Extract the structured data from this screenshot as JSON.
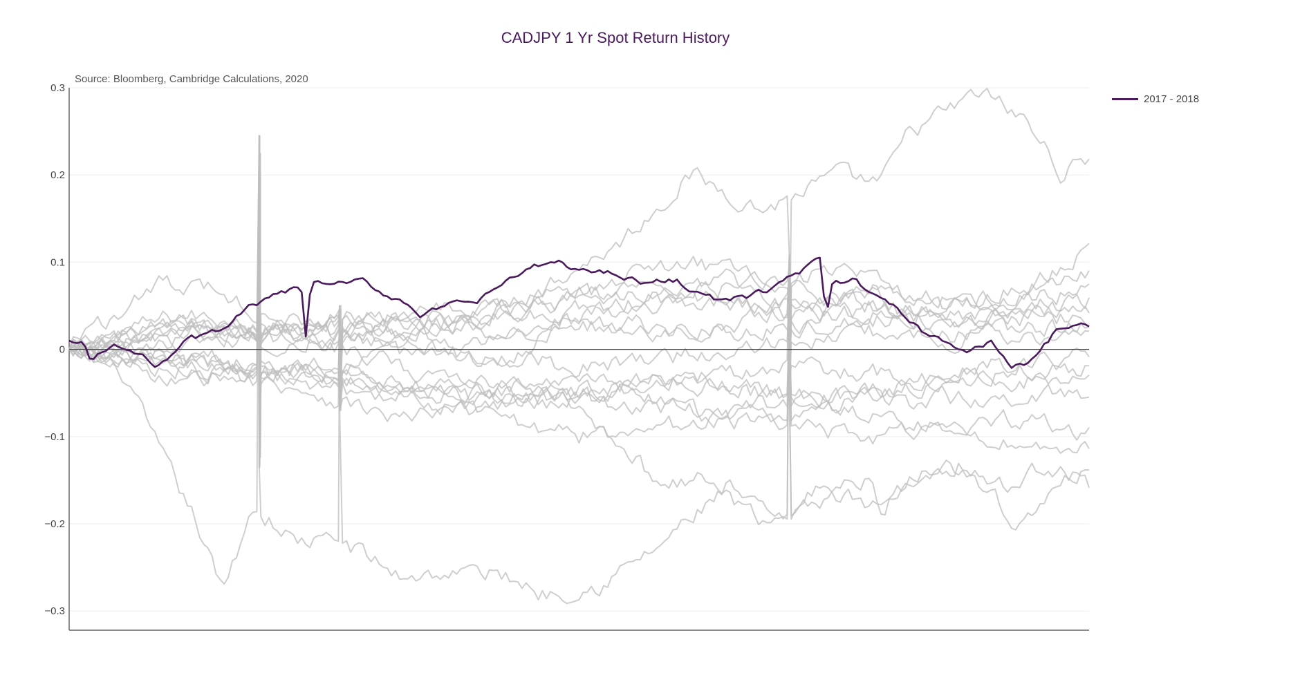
{
  "chart_data": {
    "type": "line",
    "title": "CADJPY 1 Yr Spot Return History",
    "subtitle": "Source: Bloomberg, Cambridge Calculations, 2020",
    "xlabel": "",
    "ylabel": "",
    "ylim": [
      -0.322,
      0.3
    ],
    "yticks": [
      0.3,
      0.2,
      0.1,
      0,
      -0.1,
      -0.2,
      -0.3
    ],
    "ytick_labels": [
      "0.3",
      "0.2",
      "0.1",
      "0",
      "−0.1",
      "−0.2",
      "−0.3"
    ],
    "x_points": 250,
    "grid": true,
    "legend_position": "top-right",
    "colors": {
      "highlight": "#4a1a5c",
      "history": "#bdbdbd",
      "zero_line": "#444444",
      "grid": "#eeeeee"
    },
    "highlight_series": {
      "name": "2017 - 2018",
      "anchors": [
        [
          0,
          0.01
        ],
        [
          4,
          0.008
        ],
        [
          6,
          -0.015
        ],
        [
          12,
          0.005
        ],
        [
          18,
          -0.005
        ],
        [
          24,
          -0.018
        ],
        [
          32,
          0.01
        ],
        [
          40,
          0.02
        ],
        [
          50,
          0.05
        ],
        [
          56,
          0.06
        ],
        [
          62,
          0.07
        ],
        [
          64,
          0.065
        ],
        [
          65,
          -0.008
        ],
        [
          66,
          0.076
        ],
        [
          74,
          0.075
        ],
        [
          80,
          0.078
        ],
        [
          88,
          0.06
        ],
        [
          92,
          0.055
        ],
        [
          96,
          0.04
        ],
        [
          104,
          0.05
        ],
        [
          112,
          0.055
        ],
        [
          120,
          0.08
        ],
        [
          128,
          0.095
        ],
        [
          134,
          0.1
        ],
        [
          140,
          0.09
        ],
        [
          150,
          0.088
        ],
        [
          158,
          0.075
        ],
        [
          166,
          0.08
        ],
        [
          172,
          0.065
        ],
        [
          178,
          0.055
        ],
        [
          186,
          0.06
        ],
        [
          192,
          0.07
        ],
        [
          198,
          0.085
        ],
        [
          204,
          0.1
        ],
        [
          206,
          0.1
        ],
        [
          207,
          0.012
        ],
        [
          208,
          0.075
        ],
        [
          214,
          0.08
        ],
        [
          222,
          0.06
        ],
        [
          228,
          0.04
        ],
        [
          234,
          0.02
        ],
        [
          240,
          0.008
        ],
        [
          246,
          -0.005
        ],
        [
          252,
          0.01
        ],
        [
          258,
          -0.02
        ],
        [
          264,
          -0.012
        ],
        [
          270,
          0.02
        ],
        [
          276,
          0.03
        ],
        [
          279,
          0.022
        ]
      ]
    },
    "history_series": [
      {
        "anchors": [
          [
            0,
            0
          ],
          [
            30,
            0.04
          ],
          [
            70,
            0.02
          ],
          [
            110,
            0.03
          ],
          [
            150,
            0.12
          ],
          [
            170,
            0.2
          ],
          [
            190,
            0.16
          ],
          [
            210,
            0.2
          ],
          [
            222,
            0.19
          ],
          [
            230,
            0.25
          ],
          [
            250,
            0.295
          ],
          [
            262,
            0.26
          ],
          [
            272,
            0.2
          ],
          [
            279,
            0.222
          ]
        ]
      },
      {
        "anchors": [
          [
            0,
            0
          ],
          [
            15,
            -0.03
          ],
          [
            25,
            -0.12
          ],
          [
            35,
            -0.2
          ],
          [
            42,
            -0.28
          ],
          [
            50,
            -0.18
          ],
          [
            62,
            -0.22
          ],
          [
            75,
            -0.22
          ],
          [
            90,
            -0.26
          ],
          [
            110,
            -0.255
          ],
          [
            120,
            -0.26
          ],
          [
            130,
            -0.28
          ],
          [
            145,
            -0.27
          ],
          [
            160,
            -0.23
          ],
          [
            180,
            -0.16
          ],
          [
            195,
            -0.2
          ],
          [
            210,
            -0.16
          ],
          [
            218,
            -0.15
          ],
          [
            222,
            -0.18
          ],
          [
            235,
            -0.14
          ],
          [
            245,
            -0.13
          ],
          [
            256,
            -0.16
          ],
          [
            268,
            -0.13
          ],
          [
            279,
            -0.155
          ]
        ]
      },
      {
        "anchors": [
          [
            0,
            0
          ],
          [
            30,
            0.03
          ],
          [
            60,
            0.02
          ],
          [
            90,
            0.01
          ],
          [
            120,
            -0.02
          ],
          [
            140,
            0.05
          ],
          [
            160,
            0.04
          ],
          [
            180,
            0.08
          ],
          [
            200,
            0.03
          ],
          [
            220,
            0.07
          ],
          [
            240,
            0.0
          ],
          [
            260,
            0.06
          ],
          [
            279,
            0.118
          ]
        ]
      },
      {
        "anchors": [
          [
            0,
            0
          ],
          [
            30,
            -0.02
          ],
          [
            60,
            -0.04
          ],
          [
            90,
            -0.08
          ],
          [
            110,
            -0.07
          ],
          [
            130,
            -0.05
          ],
          [
            150,
            -0.1
          ],
          [
            160,
            -0.15
          ],
          [
            175,
            -0.15
          ],
          [
            190,
            -0.2
          ],
          [
            205,
            -0.16
          ],
          [
            220,
            -0.18
          ],
          [
            240,
            -0.12
          ],
          [
            260,
            -0.2
          ],
          [
            279,
            -0.13
          ]
        ]
      },
      {
        "anchors": [
          [
            0,
            0
          ],
          [
            30,
            0.02
          ],
          [
            60,
            0.01
          ],
          [
            90,
            0.02
          ],
          [
            120,
            0.05
          ],
          [
            150,
            0.06
          ],
          [
            180,
            0.07
          ],
          [
            210,
            0.09
          ],
          [
            240,
            0.05
          ],
          [
            260,
            0.07
          ],
          [
            279,
            0.09
          ]
        ]
      },
      {
        "anchors": [
          [
            0,
            0
          ],
          [
            40,
            -0.02
          ],
          [
            80,
            -0.04
          ],
          [
            120,
            -0.06
          ],
          [
            150,
            -0.05
          ],
          [
            180,
            -0.08
          ],
          [
            210,
            -0.07
          ],
          [
            240,
            -0.09
          ],
          [
            260,
            -0.11
          ],
          [
            279,
            -0.115
          ]
        ]
      },
      {
        "anchors": [
          [
            0,
            0
          ],
          [
            40,
            0.01
          ],
          [
            80,
            0.03
          ],
          [
            120,
            0.04
          ],
          [
            160,
            0.02
          ],
          [
            200,
            0.04
          ],
          [
            240,
            0.05
          ],
          [
            279,
            0.065
          ]
        ]
      },
      {
        "anchors": [
          [
            0,
            0
          ],
          [
            30,
            -0.01
          ],
          [
            70,
            -0.03
          ],
          [
            110,
            -0.05
          ],
          [
            150,
            -0.03
          ],
          [
            190,
            -0.05
          ],
          [
            230,
            -0.06
          ],
          [
            279,
            -0.05
          ]
        ]
      },
      {
        "anchors": [
          [
            0,
            0
          ],
          [
            40,
            0.02
          ],
          [
            80,
            0.04
          ],
          [
            120,
            0.02
          ],
          [
            160,
            0.06
          ],
          [
            200,
            0.05
          ],
          [
            240,
            0.03
          ],
          [
            279,
            0.055
          ]
        ]
      },
      {
        "anchors": [
          [
            0,
            0
          ],
          [
            35,
            -0.03
          ],
          [
            75,
            -0.02
          ],
          [
            115,
            -0.06
          ],
          [
            155,
            -0.04
          ],
          [
            195,
            -0.02
          ],
          [
            235,
            -0.03
          ],
          [
            279,
            -0.02
          ]
        ]
      },
      {
        "anchors": [
          [
            0,
            0
          ],
          [
            30,
            0.03
          ],
          [
            70,
            0.0
          ],
          [
            110,
            0.03
          ],
          [
            150,
            0.07
          ],
          [
            190,
            0.05
          ],
          [
            230,
            0.06
          ],
          [
            279,
            0.05
          ]
        ]
      },
      {
        "anchors": [
          [
            0,
            0
          ],
          [
            40,
            -0.01
          ],
          [
            80,
            -0.05
          ],
          [
            120,
            -0.04
          ],
          [
            160,
            -0.07
          ],
          [
            200,
            -0.06
          ],
          [
            240,
            -0.04
          ],
          [
            279,
            -0.03
          ]
        ]
      },
      {
        "anchors": [
          [
            0,
            0
          ],
          [
            30,
            0.01
          ],
          [
            70,
            0.03
          ],
          [
            110,
            0.01
          ],
          [
            150,
            0.03
          ],
          [
            190,
            0.02
          ],
          [
            230,
            0.04
          ],
          [
            279,
            0.035
          ]
        ]
      },
      {
        "anchors": [
          [
            0,
            0
          ],
          [
            20,
            -0.02
          ],
          [
            60,
            -0.03
          ],
          [
            100,
            0.0
          ],
          [
            140,
            -0.02
          ],
          [
            180,
            0.0
          ],
          [
            220,
            0.02
          ],
          [
            279,
            0.01
          ]
        ]
      },
      {
        "anchors": [
          [
            0,
            0
          ],
          [
            25,
            0.08
          ],
          [
            45,
            0.06
          ],
          [
            60,
            0.02
          ],
          [
            90,
            -0.02
          ],
          [
            130,
            -0.06
          ],
          [
            170,
            -0.03
          ],
          [
            210,
            -0.06
          ],
          [
            250,
            -0.02
          ],
          [
            279,
            -0.01
          ]
        ]
      },
      {
        "anchors": [
          [
            0,
            0
          ],
          [
            30,
            -0.04
          ],
          [
            60,
            -0.02
          ],
          [
            100,
            -0.06
          ],
          [
            140,
            -0.1
          ],
          [
            180,
            -0.08
          ],
          [
            220,
            -0.1
          ],
          [
            260,
            -0.08
          ],
          [
            279,
            -0.095
          ]
        ]
      },
      {
        "anchors": [
          [
            0,
            0
          ],
          [
            30,
            0.02
          ],
          [
            80,
            0.03
          ],
          [
            130,
            0.06
          ],
          [
            170,
            0.1
          ],
          [
            200,
            0.07
          ],
          [
            230,
            0.04
          ],
          [
            260,
            0.02
          ],
          [
            279,
            0.03
          ]
        ]
      }
    ],
    "spikes": [
      {
        "x": 52,
        "values": [
          0.245,
          -0.135
        ]
      },
      {
        "x": 74,
        "values": [
          0.05,
          -0.07
        ]
      },
      {
        "x": 197,
        "values": [
          0.108,
          -0.04
        ]
      }
    ]
  }
}
